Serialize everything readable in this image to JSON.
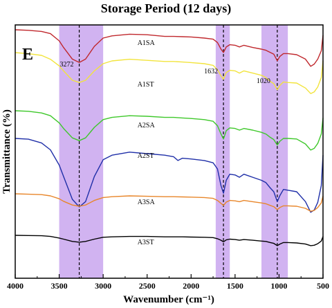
{
  "chart_data": {
    "type": "line",
    "title": "Storage Period (12 days)",
    "xlabel": "Wavenumber (cm⁻¹)",
    "ylabel": "Transmittance (%)",
    "panel_letter": "E",
    "xlim": [
      4000,
      500
    ],
    "x_reversed": true,
    "x_ticks": [
      4000,
      3500,
      3000,
      2500,
      2000,
      1500,
      1000,
      500
    ],
    "y_ticks": [],
    "grid": false,
    "highlight_bands": [
      {
        "from": 3500,
        "to": 3000,
        "color": "#c9a6ef"
      },
      {
        "from": 1720,
        "to": 1560,
        "color": "#c9a6ef"
      },
      {
        "from": 1200,
        "to": 900,
        "color": "#c9a6ef"
      }
    ],
    "reference_lines": [
      3272,
      1632,
      1020
    ],
    "peak_annotations": [
      {
        "label": "3272",
        "x": 3272
      },
      {
        "label": "1632",
        "x": 1632
      },
      {
        "label": "1020",
        "x": 1020
      }
    ],
    "series": [
      {
        "name": "A1SA",
        "color": "#c0282d",
        "label_x": 2500,
        "points": [
          [
            4000,
            100
          ],
          [
            3850,
            99
          ],
          [
            3700,
            97
          ],
          [
            3600,
            93
          ],
          [
            3500,
            80
          ],
          [
            3450,
            68
          ],
          [
            3350,
            47
          ],
          [
            3272,
            41
          ],
          [
            3200,
            47
          ],
          [
            3100,
            70
          ],
          [
            3000,
            85
          ],
          [
            2900,
            89
          ],
          [
            2700,
            92
          ],
          [
            2500,
            91
          ],
          [
            2300,
            88
          ],
          [
            2200,
            88
          ],
          [
            2100,
            87.5
          ],
          [
            2000,
            87
          ],
          [
            1850,
            85
          ],
          [
            1750,
            83
          ],
          [
            1700,
            77
          ],
          [
            1660,
            65
          ],
          [
            1632,
            59
          ],
          [
            1600,
            69
          ],
          [
            1560,
            73
          ],
          [
            1500,
            72
          ],
          [
            1450,
            69
          ],
          [
            1400,
            72
          ],
          [
            1300,
            68
          ],
          [
            1200,
            65
          ],
          [
            1150,
            63
          ],
          [
            1100,
            59
          ],
          [
            1060,
            56
          ],
          [
            1020,
            44
          ],
          [
            990,
            52
          ],
          [
            950,
            57
          ],
          [
            900,
            57
          ],
          [
            800,
            55
          ],
          [
            700,
            47
          ],
          [
            640,
            34
          ],
          [
            600,
            38
          ],
          [
            560,
            47
          ],
          [
            520,
            62
          ],
          [
            500,
            90
          ]
        ]
      },
      {
        "name": "A1ST",
        "color": "#f2e43c",
        "label_x": 2500,
        "points": [
          [
            4000,
            100
          ],
          [
            3850,
            98
          ],
          [
            3700,
            95
          ],
          [
            3600,
            88
          ],
          [
            3500,
            76
          ],
          [
            3450,
            67
          ],
          [
            3350,
            50
          ],
          [
            3272,
            46
          ],
          [
            3200,
            50
          ],
          [
            3100,
            67
          ],
          [
            3000,
            80
          ],
          [
            2900,
            85
          ],
          [
            2700,
            88
          ],
          [
            2500,
            86
          ],
          [
            2300,
            84
          ],
          [
            2200,
            84
          ],
          [
            2100,
            83
          ],
          [
            2000,
            82
          ],
          [
            1850,
            80
          ],
          [
            1750,
            77
          ],
          [
            1700,
            69
          ],
          [
            1660,
            58
          ],
          [
            1632,
            52
          ],
          [
            1600,
            64
          ],
          [
            1560,
            68
          ],
          [
            1500,
            67
          ],
          [
            1450,
            63
          ],
          [
            1400,
            67
          ],
          [
            1300,
            63
          ],
          [
            1200,
            59
          ],
          [
            1150,
            55
          ],
          [
            1100,
            48
          ],
          [
            1060,
            44
          ],
          [
            1020,
            33
          ],
          [
            990,
            41
          ],
          [
            950,
            47
          ],
          [
            900,
            46
          ],
          [
            800,
            45
          ],
          [
            700,
            36
          ],
          [
            640,
            26
          ],
          [
            600,
            29
          ],
          [
            560,
            38
          ],
          [
            520,
            55
          ],
          [
            500,
            85
          ]
        ]
      },
      {
        "name": "A2SA",
        "color": "#3ec82a",
        "label_x": 2500,
        "points": [
          [
            4000,
            100
          ],
          [
            3850,
            99
          ],
          [
            3700,
            96
          ],
          [
            3600,
            91
          ],
          [
            3500,
            78
          ],
          [
            3450,
            68
          ],
          [
            3350,
            51
          ],
          [
            3272,
            46
          ],
          [
            3200,
            51
          ],
          [
            3100,
            70
          ],
          [
            3000,
            84
          ],
          [
            2900,
            88
          ],
          [
            2700,
            91
          ],
          [
            2500,
            90
          ],
          [
            2300,
            88
          ],
          [
            2200,
            88
          ],
          [
            2100,
            87
          ],
          [
            2000,
            86
          ],
          [
            1850,
            84
          ],
          [
            1750,
            81
          ],
          [
            1700,
            73
          ],
          [
            1660,
            58
          ],
          [
            1632,
            49
          ],
          [
            1600,
            64
          ],
          [
            1560,
            69
          ],
          [
            1500,
            68
          ],
          [
            1450,
            65
          ],
          [
            1400,
            68
          ],
          [
            1300,
            65
          ],
          [
            1200,
            61
          ],
          [
            1150,
            58
          ],
          [
            1100,
            52
          ],
          [
            1060,
            48
          ],
          [
            1020,
            38
          ],
          [
            990,
            45
          ],
          [
            950,
            50
          ],
          [
            900,
            50
          ],
          [
            800,
            49
          ],
          [
            700,
            40
          ],
          [
            640,
            29
          ],
          [
            600,
            32
          ],
          [
            560,
            41
          ],
          [
            520,
            58
          ],
          [
            500,
            87
          ]
        ]
      },
      {
        "name": "A2ST",
        "color": "#1f2fa8",
        "label_x": 2500,
        "points": [
          [
            4000,
            100
          ],
          [
            3850,
            99
          ],
          [
            3700,
            94
          ],
          [
            3600,
            85
          ],
          [
            3500,
            65
          ],
          [
            3450,
            50
          ],
          [
            3350,
            20
          ],
          [
            3272,
            10
          ],
          [
            3200,
            17
          ],
          [
            3100,
            50
          ],
          [
            3000,
            72
          ],
          [
            2900,
            78
          ],
          [
            2700,
            82
          ],
          [
            2500,
            80
          ],
          [
            2300,
            78
          ],
          [
            2200,
            76
          ],
          [
            2150,
            71
          ],
          [
            2100,
            74
          ],
          [
            2000,
            73
          ],
          [
            1850,
            71
          ],
          [
            1750,
            68
          ],
          [
            1700,
            60
          ],
          [
            1660,
            38
          ],
          [
            1632,
            28
          ],
          [
            1600,
            45
          ],
          [
            1560,
            53
          ],
          [
            1500,
            52
          ],
          [
            1450,
            49
          ],
          [
            1400,
            53
          ],
          [
            1300,
            49
          ],
          [
            1200,
            45
          ],
          [
            1150,
            42
          ],
          [
            1100,
            35
          ],
          [
            1060,
            30
          ],
          [
            1020,
            17
          ],
          [
            990,
            25
          ],
          [
            950,
            33
          ],
          [
            900,
            32
          ],
          [
            800,
            30
          ],
          [
            700,
            17
          ],
          [
            640,
            3
          ],
          [
            600,
            6
          ],
          [
            560,
            16
          ],
          [
            520,
            38
          ],
          [
            500,
            78
          ]
        ]
      },
      {
        "name": "A3SA",
        "color": "#e8862a",
        "label_x": 2500,
        "points": [
          [
            4000,
            100
          ],
          [
            3850,
            99
          ],
          [
            3700,
            98
          ],
          [
            3600,
            95
          ],
          [
            3500,
            88
          ],
          [
            3450,
            82
          ],
          [
            3350,
            73
          ],
          [
            3272,
            70
          ],
          [
            3200,
            73
          ],
          [
            3100,
            84
          ],
          [
            3000,
            91
          ],
          [
            2900,
            93
          ],
          [
            2700,
            95
          ],
          [
            2500,
            94
          ],
          [
            2300,
            93
          ],
          [
            2200,
            93
          ],
          [
            2100,
            92.5
          ],
          [
            2000,
            92
          ],
          [
            1850,
            91
          ],
          [
            1750,
            89
          ],
          [
            1700,
            84
          ],
          [
            1660,
            77
          ],
          [
            1632,
            72
          ],
          [
            1600,
            80
          ],
          [
            1560,
            84
          ],
          [
            1500,
            83
          ],
          [
            1450,
            81
          ],
          [
            1400,
            84
          ],
          [
            1300,
            81
          ],
          [
            1200,
            78
          ],
          [
            1150,
            76
          ],
          [
            1100,
            72
          ],
          [
            1060,
            69
          ],
          [
            1020,
            62
          ],
          [
            990,
            67
          ],
          [
            950,
            71
          ],
          [
            900,
            71
          ],
          [
            800,
            70
          ],
          [
            700,
            65
          ],
          [
            640,
            58
          ],
          [
            600,
            60
          ],
          [
            560,
            67
          ],
          [
            520,
            78
          ],
          [
            500,
            95
          ]
        ]
      },
      {
        "name": "A3ST",
        "color": "#000000",
        "label_x": 2500,
        "points": [
          [
            4000,
            100
          ],
          [
            3850,
            99.5
          ],
          [
            3700,
            99
          ],
          [
            3600,
            97
          ],
          [
            3500,
            93
          ],
          [
            3450,
            90
          ],
          [
            3350,
            84
          ],
          [
            3272,
            82
          ],
          [
            3200,
            84
          ],
          [
            3100,
            90
          ],
          [
            3000,
            95
          ],
          [
            2900,
            96
          ],
          [
            2700,
            97
          ],
          [
            2500,
            97
          ],
          [
            2300,
            96
          ],
          [
            2200,
            96
          ],
          [
            2100,
            96
          ],
          [
            2000,
            95.5
          ],
          [
            1850,
            95
          ],
          [
            1750,
            94
          ],
          [
            1700,
            91
          ],
          [
            1660,
            87
          ],
          [
            1632,
            83
          ],
          [
            1600,
            88
          ],
          [
            1560,
            90
          ],
          [
            1500,
            89
          ],
          [
            1450,
            87
          ],
          [
            1400,
            89
          ],
          [
            1300,
            87
          ],
          [
            1200,
            85
          ],
          [
            1150,
            84
          ],
          [
            1100,
            81
          ],
          [
            1060,
            79
          ],
          [
            1020,
            73
          ],
          [
            990,
            77
          ],
          [
            950,
            81
          ],
          [
            900,
            81
          ],
          [
            800,
            80
          ],
          [
            700,
            77
          ],
          [
            640,
            73
          ],
          [
            600,
            74
          ],
          [
            560,
            78
          ],
          [
            520,
            85
          ],
          [
            500,
            97
          ]
        ]
      }
    ]
  }
}
